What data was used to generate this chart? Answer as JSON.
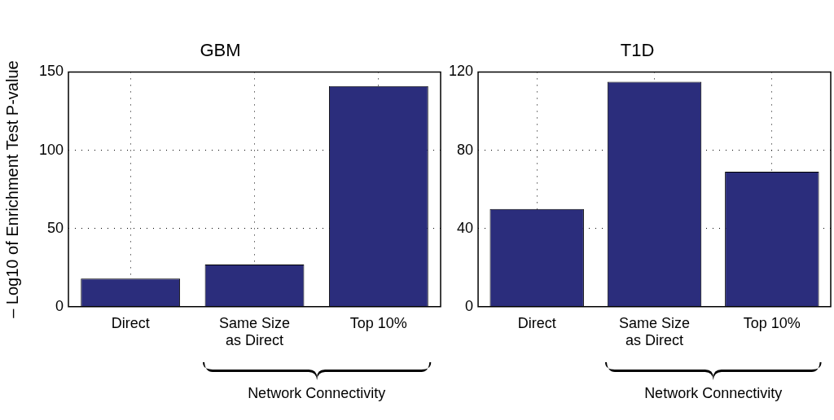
{
  "chart_data": [
    {
      "type": "bar",
      "title": "GBM",
      "ylabel": "– Log10 of Enrichment Test P-value",
      "categories": [
        "Direct",
        "Same Size\nas Direct",
        "Top 10%"
      ],
      "values": [
        18,
        27,
        141
      ],
      "color": "#2b2d7c",
      "ylim": [
        0,
        150
      ],
      "yticks": [
        0,
        50,
        100,
        150
      ],
      "grid": true,
      "annotations": [
        "Network Connectivity"
      ]
    },
    {
      "type": "bar",
      "title": "T1D",
      "categories": [
        "Direct",
        "Same Size\nas Direct",
        "Top 10%"
      ],
      "values": [
        50,
        115,
        69
      ],
      "color": "#2b2d7c",
      "ylim": [
        0,
        120
      ],
      "yticks": [
        0,
        40,
        80,
        120
      ],
      "grid": true,
      "annotations": [
        "Network Connectivity"
      ]
    }
  ]
}
